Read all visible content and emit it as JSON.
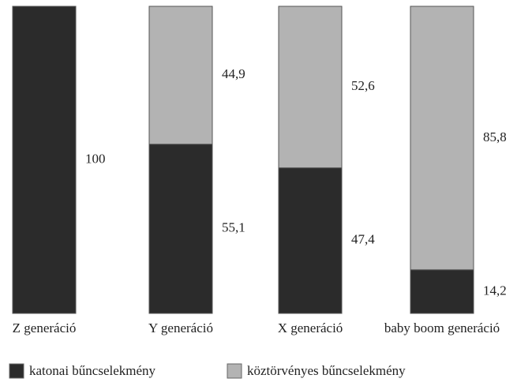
{
  "chart_data": {
    "type": "stacked_bar",
    "categories": [
      "Z generáció",
      "Y generáció",
      "X generáció",
      "baby boom generáció"
    ],
    "series": [
      {
        "name": "katonai bűncselekmény",
        "color": "#2b2b2b",
        "values": [
          100,
          55.1,
          47.4,
          14.2
        ],
        "value_labels": [
          "100",
          "55,1",
          "47,4",
          "14,2"
        ]
      },
      {
        "name": "köztörvényes bűncselekmény",
        "color": "#b3b3b3",
        "values": [
          0,
          44.9,
          52.6,
          85.8
        ],
        "value_labels": [
          null,
          "44,9",
          "52,6",
          "85,8"
        ]
      }
    ],
    "ylim": [
      0,
      100
    ]
  }
}
